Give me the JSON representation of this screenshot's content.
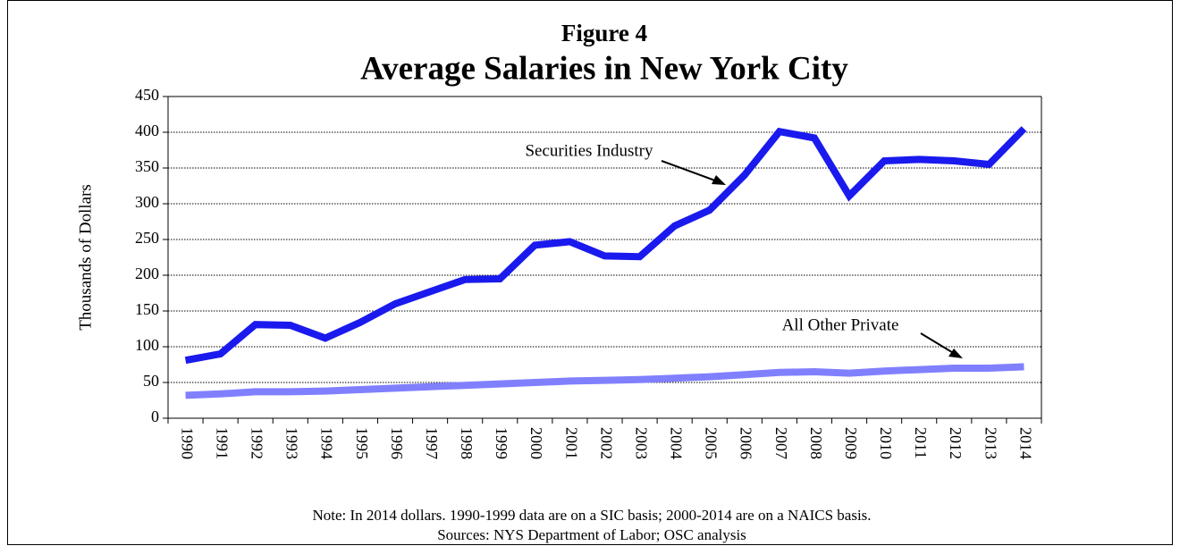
{
  "chart_data": {
    "type": "line",
    "supertitle": "Figure 4",
    "title": "Average Salaries in New York City",
    "ylabel": "Thousands of Dollars",
    "categories": [
      "1990",
      "1991",
      "1992",
      "1993",
      "1994",
      "1995",
      "1996",
      "1997",
      "1998",
      "1999",
      "2000",
      "2001",
      "2002",
      "2003",
      "2004",
      "2005",
      "2006",
      "2007",
      "2008",
      "2009",
      "2010",
      "2011",
      "2012",
      "2013",
      "2014"
    ],
    "series": [
      {
        "name": "Securities Industry",
        "color": "#1a1aee",
        "values": [
          81,
          90,
          131,
          130,
          112,
          134,
          160,
          177,
          194,
          195,
          242,
          247,
          227,
          226,
          269,
          291,
          340,
          401,
          392,
          311,
          360,
          362,
          360,
          355,
          405
        ]
      },
      {
        "name": "All Other Private",
        "color": "#8080ff",
        "values": [
          32,
          34,
          37,
          37,
          38,
          40,
          42,
          44,
          46,
          48,
          50,
          52,
          53,
          54,
          56,
          58,
          61,
          64,
          65,
          63,
          66,
          68,
          70,
          70,
          72
        ]
      }
    ],
    "ylim": [
      0,
      450
    ],
    "yticks": [
      0,
      50,
      100,
      150,
      200,
      250,
      300,
      350,
      400,
      450
    ],
    "grid": true,
    "notes": [
      "Note: In 2014 dollars. 1990-1999 data are on a SIC basis; 2000-2014 are on a NAICS basis.",
      "Sources: NYS Department of Labor; OSC analysis"
    ]
  }
}
